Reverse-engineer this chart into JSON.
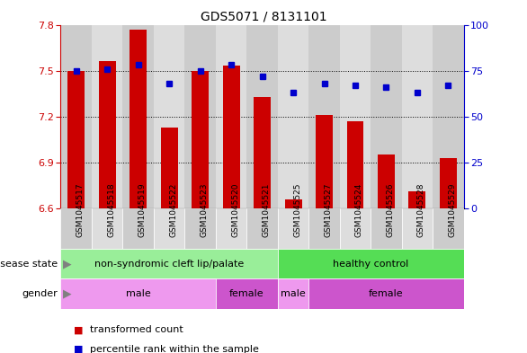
{
  "title": "GDS5071 / 8131101",
  "samples": [
    "GSM1045517",
    "GSM1045518",
    "GSM1045519",
    "GSM1045522",
    "GSM1045523",
    "GSM1045520",
    "GSM1045521",
    "GSM1045525",
    "GSM1045527",
    "GSM1045524",
    "GSM1045526",
    "GSM1045528",
    "GSM1045529"
  ],
  "bar_values": [
    7.5,
    7.56,
    7.77,
    7.13,
    7.5,
    7.53,
    7.33,
    6.66,
    7.21,
    7.17,
    6.95,
    6.71,
    6.93
  ],
  "percentile_values": [
    75,
    76,
    78,
    68,
    75,
    78,
    72,
    63,
    68,
    67,
    66,
    63,
    67
  ],
  "ylim_left": [
    6.6,
    7.8
  ],
  "ylim_right": [
    0,
    100
  ],
  "yticks_left": [
    6.6,
    6.9,
    7.2,
    7.5,
    7.8
  ],
  "yticks_right": [
    0,
    25,
    50,
    75,
    100
  ],
  "bar_color": "#cc0000",
  "dot_color": "#0000cc",
  "col_bg_even": "#cccccc",
  "col_bg_odd": "#dddddd",
  "disease_state_groups": [
    {
      "label": "non-syndromic cleft lip/palate",
      "start": 0,
      "end": 7,
      "color": "#99ee99"
    },
    {
      "label": "healthy control",
      "start": 7,
      "end": 13,
      "color": "#55dd55"
    }
  ],
  "gender_groups": [
    {
      "label": "male",
      "start": 0,
      "end": 5,
      "color": "#ee99ee"
    },
    {
      "label": "female",
      "start": 5,
      "end": 7,
      "color": "#cc55cc"
    },
    {
      "label": "male",
      "start": 7,
      "end": 8,
      "color": "#ee99ee"
    },
    {
      "label": "female",
      "start": 8,
      "end": 13,
      "color": "#cc55cc"
    }
  ],
  "legend_items": [
    {
      "label": "transformed count",
      "color": "#cc0000"
    },
    {
      "label": "percentile rank within the sample",
      "color": "#0000cc"
    }
  ],
  "xlabel_disease": "disease state",
  "xlabel_gender": "gender",
  "base_value": 6.6
}
